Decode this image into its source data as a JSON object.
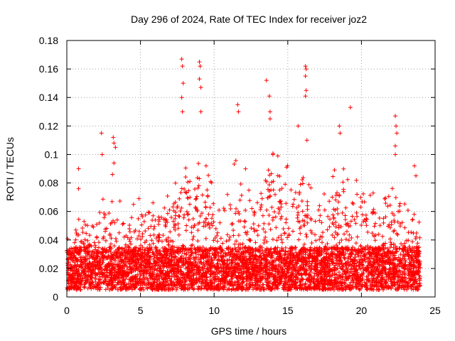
{
  "chart_data": {
    "type": "scatter",
    "title": "Day 296 of 2024, Rate Of TEC Index for receiver joz2",
    "xlabel": "GPS time / hours",
    "ylabel": "ROTI / TECUs",
    "xlim": [
      0,
      25
    ],
    "ylim": [
      0,
      0.18
    ],
    "x_ticks": [
      0,
      5,
      10,
      15,
      20,
      25
    ],
    "x_tick_labels": [
      "0",
      "5",
      "10",
      "15",
      "20",
      "25"
    ],
    "y_ticks": [
      0,
      0.02,
      0.04,
      0.06,
      0.08,
      0.1,
      0.12,
      0.14,
      0.16,
      0.18
    ],
    "y_tick_labels": [
      "0",
      "0.02",
      "0.04",
      "0.06",
      "0.08",
      "0.1",
      "0.12",
      "0.14",
      "0.16",
      "0.18"
    ],
    "grid": true,
    "marker": "+",
    "series": [
      {
        "name": "ROTI",
        "color": "#ff0000",
        "x_range": [
          0,
          24
        ],
        "baseline_band": [
          0.005,
          0.035
        ],
        "notable_points": [
          {
            "x": 0.8,
            "y": 0.09
          },
          {
            "x": 0.8,
            "y": 0.076
          },
          {
            "x": 2.35,
            "y": 0.115
          },
          {
            "x": 2.4,
            "y": 0.1
          },
          {
            "x": 3.15,
            "y": 0.112
          },
          {
            "x": 3.2,
            "y": 0.108
          },
          {
            "x": 3.3,
            "y": 0.105
          },
          {
            "x": 3.2,
            "y": 0.094
          },
          {
            "x": 3.1,
            "y": 0.086
          },
          {
            "x": 7.8,
            "y": 0.167
          },
          {
            "x": 7.85,
            "y": 0.162
          },
          {
            "x": 7.9,
            "y": 0.15
          },
          {
            "x": 7.8,
            "y": 0.14
          },
          {
            "x": 7.85,
            "y": 0.13
          },
          {
            "x": 9.0,
            "y": 0.165
          },
          {
            "x": 9.05,
            "y": 0.162
          },
          {
            "x": 9.0,
            "y": 0.153
          },
          {
            "x": 9.1,
            "y": 0.147
          },
          {
            "x": 9.1,
            "y": 0.13
          },
          {
            "x": 11.6,
            "y": 0.135
          },
          {
            "x": 11.65,
            "y": 0.13
          },
          {
            "x": 13.55,
            "y": 0.152
          },
          {
            "x": 13.75,
            "y": 0.141
          },
          {
            "x": 13.8,
            "y": 0.13
          },
          {
            "x": 13.8,
            "y": 0.125
          },
          {
            "x": 15.7,
            "y": 0.12
          },
          {
            "x": 16.2,
            "y": 0.162
          },
          {
            "x": 16.25,
            "y": 0.16
          },
          {
            "x": 16.2,
            "y": 0.155
          },
          {
            "x": 16.25,
            "y": 0.145
          },
          {
            "x": 16.2,
            "y": 0.141
          },
          {
            "x": 16.3,
            "y": 0.11
          },
          {
            "x": 18.5,
            "y": 0.12
          },
          {
            "x": 18.55,
            "y": 0.115
          },
          {
            "x": 19.25,
            "y": 0.133
          },
          {
            "x": 22.3,
            "y": 0.127
          },
          {
            "x": 22.35,
            "y": 0.12
          },
          {
            "x": 22.4,
            "y": 0.115
          },
          {
            "x": 22.3,
            "y": 0.106
          },
          {
            "x": 22.3,
            "y": 0.1
          },
          {
            "x": 23.6,
            "y": 0.092
          },
          {
            "x": 23.7,
            "y": 0.085
          }
        ],
        "activity_envelope": [
          {
            "x": 0,
            "y": 0.05
          },
          {
            "x": 0.5,
            "y": 0.045
          },
          {
            "x": 1.0,
            "y": 0.05
          },
          {
            "x": 1.5,
            "y": 0.04
          },
          {
            "x": 2.0,
            "y": 0.045
          },
          {
            "x": 2.5,
            "y": 0.06
          },
          {
            "x": 3.0,
            "y": 0.055
          },
          {
            "x": 3.5,
            "y": 0.065
          },
          {
            "x": 4.0,
            "y": 0.05
          },
          {
            "x": 4.5,
            "y": 0.055
          },
          {
            "x": 5.0,
            "y": 0.06
          },
          {
            "x": 5.5,
            "y": 0.06
          },
          {
            "x": 6.0,
            "y": 0.058
          },
          {
            "x": 6.5,
            "y": 0.06
          },
          {
            "x": 7.0,
            "y": 0.06
          },
          {
            "x": 7.5,
            "y": 0.075
          },
          {
            "x": 8.0,
            "y": 0.085
          },
          {
            "x": 8.5,
            "y": 0.08
          },
          {
            "x": 9.0,
            "y": 0.09
          },
          {
            "x": 9.5,
            "y": 0.08
          },
          {
            "x": 10.0,
            "y": 0.065
          },
          {
            "x": 10.5,
            "y": 0.06
          },
          {
            "x": 11.0,
            "y": 0.07
          },
          {
            "x": 11.5,
            "y": 0.085
          },
          {
            "x": 12.0,
            "y": 0.08
          },
          {
            "x": 12.5,
            "y": 0.07
          },
          {
            "x": 13.0,
            "y": 0.06
          },
          {
            "x": 13.5,
            "y": 0.075
          },
          {
            "x": 14.0,
            "y": 0.09
          },
          {
            "x": 14.5,
            "y": 0.085
          },
          {
            "x": 15.0,
            "y": 0.08
          },
          {
            "x": 15.5,
            "y": 0.07
          },
          {
            "x": 16.0,
            "y": 0.085
          },
          {
            "x": 16.5,
            "y": 0.08
          },
          {
            "x": 17.0,
            "y": 0.065
          },
          {
            "x": 17.5,
            "y": 0.065
          },
          {
            "x": 18.0,
            "y": 0.075
          },
          {
            "x": 18.5,
            "y": 0.08
          },
          {
            "x": 19.0,
            "y": 0.085
          },
          {
            "x": 19.5,
            "y": 0.075
          },
          {
            "x": 20.0,
            "y": 0.075
          },
          {
            "x": 20.5,
            "y": 0.065
          },
          {
            "x": 21.0,
            "y": 0.06
          },
          {
            "x": 21.5,
            "y": 0.06
          },
          {
            "x": 22.0,
            "y": 0.065
          },
          {
            "x": 22.5,
            "y": 0.07
          },
          {
            "x": 23.0,
            "y": 0.055
          },
          {
            "x": 23.5,
            "y": 0.05
          },
          {
            "x": 24.0,
            "y": 0.045
          }
        ]
      }
    ]
  }
}
